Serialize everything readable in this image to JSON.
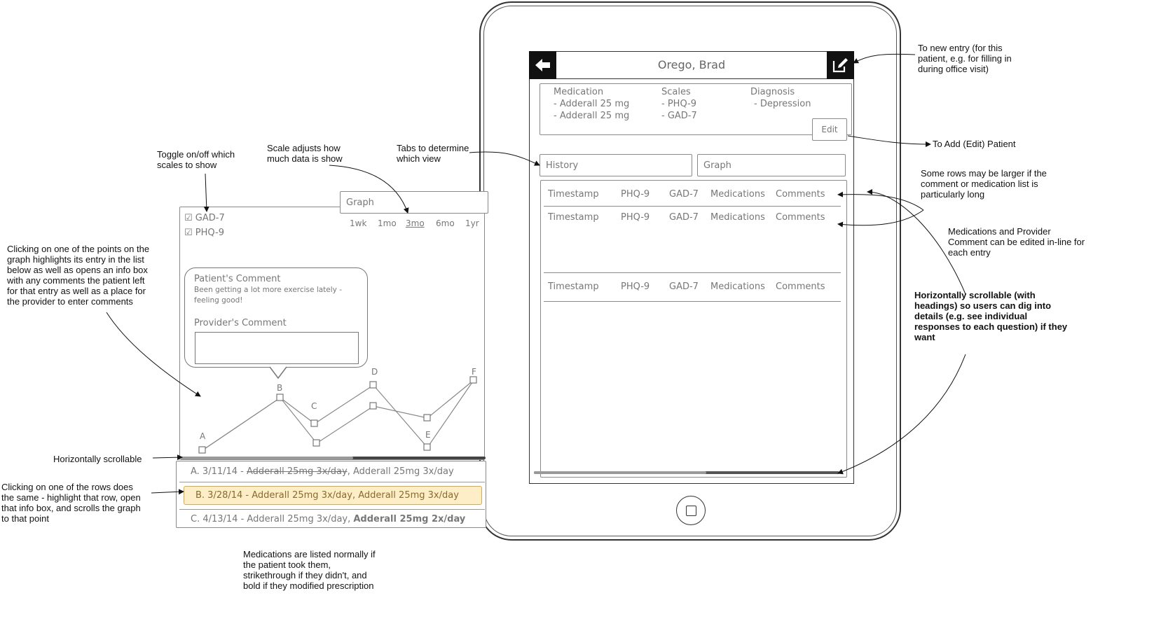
{
  "tablet": {
    "patient_name": "Orego, Brad",
    "summary": {
      "medication_heading": "Medication",
      "medications": [
        "- Adderall 25 mg",
        "- Adderall 25 mg"
      ],
      "scales_heading": "Scales",
      "scales": [
        "- PHQ-9",
        "- GAD-7"
      ],
      "diagnosis_heading": "Diagnosis",
      "diagnoses": [
        "- Depression"
      ],
      "edit_label": "Edit"
    },
    "tabs": [
      {
        "label": "History"
      },
      {
        "label": "Graph"
      }
    ],
    "history_rows": [
      {
        "timestamp": "Timestamp",
        "phq9": "PHQ-9",
        "gad7": "GAD-7",
        "medications": "Medications",
        "comments": "Comments"
      },
      {
        "timestamp": "Timestamp",
        "phq9": "PHQ-9",
        "gad7": "GAD-7",
        "medications": "Medications",
        "comments": "Comments"
      },
      {
        "timestamp": "Timestamp",
        "phq9": "PHQ-9",
        "gad7": "GAD-7",
        "medications": "Medications",
        "comments": "Comments"
      }
    ]
  },
  "graph_panel": {
    "tab_label": "Graph",
    "toggles": [
      {
        "label": "GAD-7",
        "checked": true
      },
      {
        "label": "PHQ-9",
        "checked": true
      }
    ],
    "scales": [
      "1wk",
      "1mo",
      "3mo",
      "6mo",
      "1yr"
    ],
    "selected_scale": "3mo",
    "info_box": {
      "patient_heading": "Patient's Comment",
      "patient_comment_line1": "Been getting a lot more exercise lately -",
      "patient_comment_line2": "feeling good!",
      "provider_heading": "Provider's Comment",
      "provider_input_value": ""
    },
    "point_labels": [
      "A",
      "B",
      "C",
      "D",
      "E",
      "F"
    ],
    "entries": [
      {
        "prefix": "A. 3/11/14 - ",
        "struck": "Adderall 25mg 3x/day",
        "normal": ", Adderall 25mg 3x/day",
        "bold": "",
        "highlighted": false
      },
      {
        "prefix": "B. 3/28/14 - ",
        "struck": "",
        "normal": "Adderall 25mg 3x/day, Adderall 25mg 3x/day",
        "bold": "",
        "highlighted": true
      },
      {
        "prefix": "C. 4/13/14 - ",
        "struck": "",
        "normal": "Adderall 25mg 3x/day, ",
        "bold": "Adderall 25mg 2x/day",
        "highlighted": false
      }
    ]
  },
  "annotations": {
    "toggle": "Toggle on/off which\nscales to show",
    "scale": "Scale adjusts how\nmuch data is show",
    "tabs": "Tabs to determine\nwhich view",
    "new_entry": "To new entry (for this\npatient, e.g. for filling in\nduring office visit)",
    "add_edit": "To Add (Edit) Patient",
    "rows_larger": "Some rows may be larger if the\ncomment or medication list is\nparticularly long",
    "inline_edit": "Medications and Provider\nComment can be edited in-line for\neach entry",
    "horiz_scroll_headings": "Horizontally scrollable (with\nheadings) so users can dig into\ndetails (e.g. see individual\nresponses to each question) if they\nwant",
    "click_points": "Clicking on one of the points on the\ngraph highlights its entry in the list\nbelow as well as opens an info box\nwith any comments the patient left\nfor that entry as well as a place for\nthe provider to enter comments",
    "horiz_scroll": "Horizontally scrollable",
    "click_rows": "Clicking on one of the rows does\nthe same - highlight that row, open\nthat info box, and scrolls the graph\nto that point",
    "med_listing": "Medications are listed normally if\nthe patient took them,\nstrikethrough if they didn't, and\nbold if they modified prescription"
  },
  "colors": {
    "highlight_row": "#fdeec8",
    "sketch_stroke": "#8a8a8a",
    "header_black": "#111111"
  }
}
